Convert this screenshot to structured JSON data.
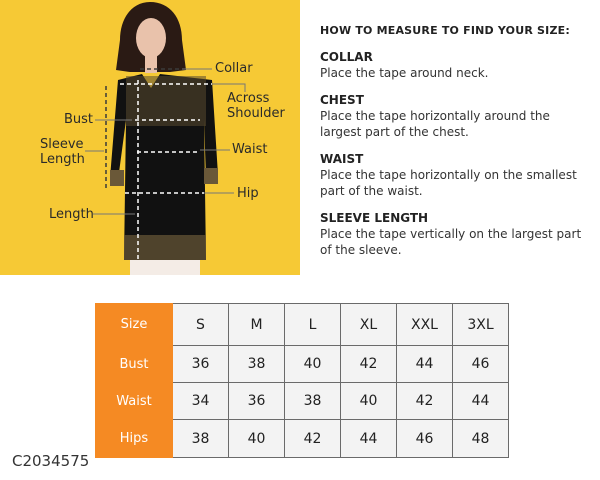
{
  "diagram": {
    "labels": {
      "collar": "Collar",
      "across_shoulder": "Across\nShoulder",
      "bust": "Bust",
      "sleeve_length": "Sleeve\nLength",
      "waist": "Waist",
      "hip": "Hip",
      "length": "Length"
    },
    "colors": {
      "background": "#f6c935",
      "accent": "#f58a23"
    }
  },
  "guide": {
    "title": "HOW TO MEASURE TO FIND YOUR SIZE:",
    "sections": [
      {
        "heading": "COLLAR",
        "text": "Place the tape around neck."
      },
      {
        "heading": "CHEST",
        "text": "Place the tape horizontally around the largest part of the chest."
      },
      {
        "heading": "WAIST",
        "text": "Place the tape horizontally on the smallest part of the waist."
      },
      {
        "heading": "SLEEVE LENGTH",
        "text": "Place the tape vertically on the largest part of the sleeve."
      }
    ]
  },
  "table": {
    "header": "Size",
    "sizes": [
      "S",
      "M",
      "L",
      "XL",
      "XXL",
      "3XL"
    ],
    "rows": [
      {
        "label": "Bust",
        "values": [
          "36",
          "38",
          "40",
          "42",
          "44",
          "46"
        ]
      },
      {
        "label": "Waist",
        "values": [
          "34",
          "36",
          "38",
          "40",
          "42",
          "44"
        ]
      },
      {
        "label": "Hips",
        "values": [
          "38",
          "40",
          "42",
          "44",
          "46",
          "48"
        ]
      }
    ]
  },
  "product_code": "C2034575"
}
